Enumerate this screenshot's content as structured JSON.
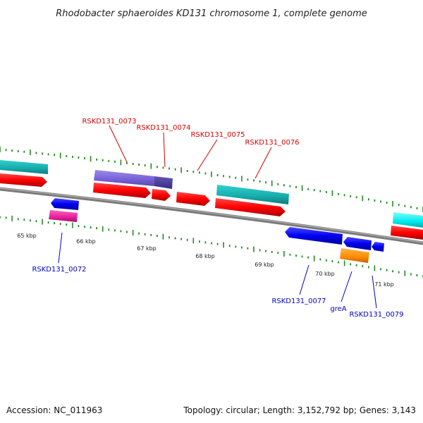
{
  "title": "Rhodobacter sphaeroides KD131 chromosome 1, complete genome",
  "footer": {
    "accession": "Accession: NC_011963",
    "summary": "Topology: circular; Length: 3,152,792 bp; Genes: 3,143"
  },
  "scale_labels": [
    "65 kbp",
    "66 kbp",
    "67 kbp",
    "68 kbp",
    "69 kbp",
    "70 kbp",
    "71 kbp"
  ],
  "gene_labels": {
    "top": [
      "RSKD131_0073",
      "RSKD131_0074",
      "RSKD131_0075",
      "RSKD131_0076"
    ],
    "bottom": [
      "RSKD131_0072",
      "RSKD131_0077",
      "greA",
      "RSKD131_0079"
    ]
  },
  "colors": {
    "backbone": "#808080",
    "cds_forward": "#ff0000",
    "cds_reverse": "#0000ff",
    "rna_teal": "#1ab3b3",
    "rna_cyan": "#00ffff",
    "purple": "#7b68d8",
    "dark_purple": "#4b3b9e",
    "magenta": "#e6209a",
    "orange": "#ff8c00",
    "tick": "#228b22",
    "label_top": "#d40000",
    "label_bottom": "#0000c8"
  }
}
